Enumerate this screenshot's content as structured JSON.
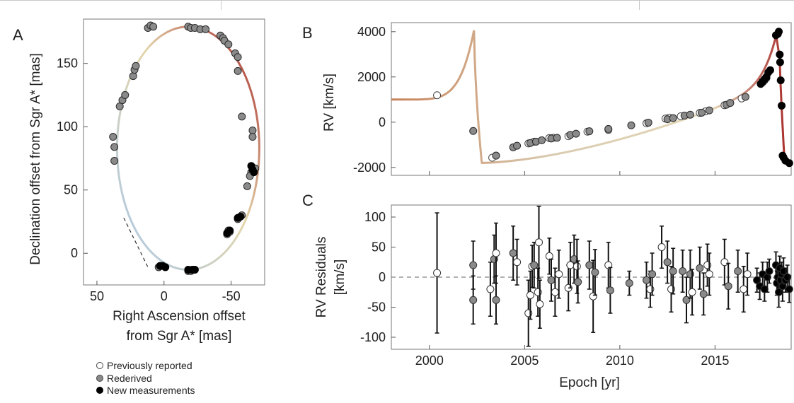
{
  "panels": {
    "a": {
      "label": "A"
    },
    "b": {
      "label": "B"
    },
    "c": {
      "label": "C"
    }
  },
  "legend": [
    {
      "label": "Previously reported",
      "color": "#ffffff"
    },
    {
      "label": "Rederived",
      "color": "#8a8a8a"
    },
    {
      "label": "New measurements",
      "color": "#000000"
    }
  ],
  "colors": {
    "orbit_start": "#a9c8ea",
    "orbit_mid": "#e3d6ac",
    "orbit_end": "#a52222",
    "point_edge": "#2b2b2b",
    "frame": "#777777"
  },
  "chart_data": [
    {
      "type": "scatter",
      "panel": "A",
      "xlabel_lines": [
        "Right Ascension offset",
        "from Sgr A* [mas]"
      ],
      "ylabel": "Declination offset from Sgr A* [mas]",
      "xlim": [
        60,
        -75
      ],
      "ylim": [
        -25,
        185
      ],
      "xticks": [
        50,
        0,
        -50
      ],
      "yticks": [
        0,
        50,
        100,
        150
      ],
      "orbit": {
        "center": [
          -18,
          83
        ],
        "semi_axes": [
          53,
          96
        ],
        "pericenter": [
          -18,
          -13
        ],
        "label": "orbit curve"
      },
      "pericenter_line": {
        "from": [
          30,
          28
        ],
        "to": [
          12,
          -11
        ]
      },
      "points": {
        "rederived": [
          [
            38,
            92
          ],
          [
            37,
            84
          ],
          [
            37,
            73
          ],
          [
            33,
            116
          ],
          [
            31,
            121
          ],
          [
            29,
            125
          ],
          [
            23,
            140
          ],
          [
            22,
            145
          ],
          [
            21,
            148
          ],
          [
            12,
            178
          ],
          [
            10,
            180
          ],
          [
            8,
            179
          ],
          [
            -18,
            179
          ],
          [
            -20,
            178
          ],
          [
            -23,
            178
          ],
          [
            -27,
            177
          ],
          [
            -31,
            177
          ],
          [
            -42,
            172
          ],
          [
            -44,
            170
          ],
          [
            -45,
            168
          ],
          [
            -48,
            165
          ],
          [
            -53,
            158
          ],
          [
            -55,
            155
          ],
          [
            -55,
            144
          ],
          [
            -58,
            108
          ],
          [
            -66,
            97
          ],
          [
            -66,
            92
          ],
          [
            -68,
            67
          ],
          [
            -65,
            64
          ],
          [
            -64,
            61
          ],
          [
            -62,
            53
          ],
          [
            -58,
            30
          ],
          [
            -55,
            27
          ],
          [
            -49,
            17
          ],
          [
            -47,
            15
          ],
          [
            -48,
            18
          ],
          [
            4,
            -11
          ],
          [
            2,
            -10
          ],
          [
            -18,
            -14
          ],
          [
            -20,
            -14
          ],
          [
            -22,
            -13
          ]
        ],
        "new": [
          [
            3,
            -10
          ],
          [
            1,
            -10
          ],
          [
            -1,
            -11
          ],
          [
            -18,
            -13
          ],
          [
            -21,
            -13
          ],
          [
            -23,
            -13
          ],
          [
            -49,
            18
          ],
          [
            -47,
            16
          ],
          [
            -57,
            29
          ],
          [
            -55,
            28
          ],
          [
            -65,
            69
          ],
          [
            -66,
            66
          ],
          [
            -67,
            64
          ]
        ]
      }
    },
    {
      "type": "line",
      "panel": "B",
      "ylabel": "RV [km/s]",
      "xlim": [
        1998,
        2019
      ],
      "ylim": [
        -2350,
        4400
      ],
      "yticks": [
        -2000,
        0,
        2000,
        4000
      ],
      "points": {
        "previous": [
          [
            2000.4,
            1190
          ],
          [
            2003.3,
            -1570
          ],
          [
            2003.5,
            -1480
          ],
          [
            2005.2,
            -940
          ],
          [
            2005.5,
            -860
          ],
          [
            2006.3,
            -700
          ],
          [
            2006.5,
            -690
          ],
          [
            2007.3,
            -620
          ],
          [
            2008.3,
            -420
          ],
          [
            2009.4,
            -340
          ],
          [
            2011.4,
            -50
          ],
          [
            2012.4,
            160
          ],
          [
            2012.6,
            200
          ],
          [
            2013.2,
            260
          ],
          [
            2014.2,
            410
          ],
          [
            2014.5,
            480
          ],
          [
            2015.5,
            750
          ],
          [
            2016.4,
            1050
          ]
        ],
        "rederived": [
          [
            2002.3,
            -390
          ],
          [
            2003.5,
            -1480
          ],
          [
            2004.4,
            -1110
          ],
          [
            2004.6,
            -1040
          ],
          [
            2005.3,
            -920
          ],
          [
            2005.6,
            -860
          ],
          [
            2005.9,
            -800
          ],
          [
            2006.4,
            -720
          ],
          [
            2006.7,
            -690
          ],
          [
            2007.4,
            -560
          ],
          [
            2007.7,
            -510
          ],
          [
            2008.4,
            -400
          ],
          [
            2009.4,
            -300
          ],
          [
            2010.6,
            -140
          ],
          [
            2011.5,
            -20
          ],
          [
            2012.5,
            130
          ],
          [
            2012.8,
            180
          ],
          [
            2013.4,
            290
          ],
          [
            2013.7,
            330
          ],
          [
            2014.3,
            420
          ],
          [
            2014.7,
            520
          ],
          [
            2015.6,
            770
          ],
          [
            2015.8,
            850
          ],
          [
            2016.6,
            1120
          ],
          [
            2017.5,
            1760
          ],
          [
            2017.6,
            1850
          ],
          [
            2017.7,
            1950
          ]
        ],
        "new": [
          [
            2017.4,
            1690
          ],
          [
            2017.5,
            1800
          ],
          [
            2017.6,
            1900
          ],
          [
            2017.7,
            2000
          ],
          [
            2017.8,
            2200
          ],
          [
            2017.9,
            2300
          ],
          [
            2018.2,
            3840
          ],
          [
            2018.3,
            3900
          ],
          [
            2018.35,
            4000
          ],
          [
            2018.4,
            2990
          ],
          [
            2018.42,
            2650
          ],
          [
            2018.45,
            1850
          ],
          [
            2018.5,
            730
          ],
          [
            2018.55,
            -1480
          ],
          [
            2018.6,
            -1560
          ],
          [
            2018.7,
            -1700
          ],
          [
            2018.9,
            -1810
          ]
        ]
      }
    },
    {
      "type": "scatter",
      "panel": "C",
      "xlabel": "Epoch [yr]",
      "ylabel_lines": [
        "RV Residuals",
        "[km/s]"
      ],
      "xlim": [
        1998,
        2019
      ],
      "ylim": [
        -120,
        120
      ],
      "xticks": [
        2000,
        2005,
        2010,
        2015
      ],
      "yticks": [
        -100,
        -50,
        0,
        50,
        100
      ],
      "zero_line": 0,
      "points": [
        [
          2000.4,
          7,
          100,
          "o"
        ],
        [
          2002.3,
          20,
          40,
          "r"
        ],
        [
          2002.3,
          -38,
          40,
          "r"
        ],
        [
          2003.2,
          -20,
          45,
          "o"
        ],
        [
          2003.4,
          30,
          40,
          "r"
        ],
        [
          2003.5,
          -38,
          40,
          "r"
        ],
        [
          2003.5,
          40,
          50,
          "o"
        ],
        [
          2004.4,
          40,
          45,
          "r"
        ],
        [
          2004.6,
          25,
          38,
          "o"
        ],
        [
          2005.2,
          -60,
          55,
          "o"
        ],
        [
          2005.3,
          -30,
          40,
          "o"
        ],
        [
          2005.4,
          18,
          35,
          "o"
        ],
        [
          2005.5,
          20,
          38,
          "r"
        ],
        [
          2005.7,
          -25,
          40,
          "o"
        ],
        [
          2005.75,
          58,
          60,
          "o"
        ],
        [
          2005.8,
          -45,
          40,
          "o"
        ],
        [
          2006.3,
          35,
          30,
          "o"
        ],
        [
          2006.4,
          -5,
          35,
          "r"
        ],
        [
          2006.6,
          -25,
          40,
          "o"
        ],
        [
          2006.8,
          5,
          40,
          "o"
        ],
        [
          2007.3,
          -18,
          38,
          "o"
        ],
        [
          2007.4,
          20,
          38,
          "o"
        ],
        [
          2007.6,
          30,
          40,
          "r"
        ],
        [
          2007.75,
          18,
          45,
          "o"
        ],
        [
          2007.8,
          -8,
          35,
          "r"
        ],
        [
          2008.4,
          20,
          40,
          "r"
        ],
        [
          2008.6,
          -32,
          60,
          "o"
        ],
        [
          2008.7,
          8,
          38,
          "r"
        ],
        [
          2009.4,
          20,
          38,
          "o"
        ],
        [
          2009.5,
          -22,
          38,
          "r"
        ],
        [
          2010.5,
          -10,
          20,
          "r"
        ],
        [
          2011.4,
          -5,
          30,
          "r"
        ],
        [
          2011.6,
          -20,
          30,
          "o"
        ],
        [
          2011.7,
          5,
          35,
          "r"
        ],
        [
          2012.2,
          50,
          35,
          "o"
        ],
        [
          2012.5,
          25,
          35,
          "r"
        ],
        [
          2012.7,
          -20,
          38,
          "o"
        ],
        [
          2012.8,
          10,
          38,
          "r"
        ],
        [
          2013.3,
          10,
          35,
          "r"
        ],
        [
          2013.5,
          -38,
          38,
          "r"
        ],
        [
          2013.7,
          5,
          40,
          "r"
        ],
        [
          2013.8,
          -25,
          38,
          "o"
        ],
        [
          2014.2,
          15,
          35,
          "r"
        ],
        [
          2014.4,
          -28,
          35,
          "r"
        ],
        [
          2014.6,
          20,
          35,
          "o"
        ],
        [
          2014.7,
          5,
          35,
          "o"
        ],
        [
          2015.5,
          25,
          38,
          "o"
        ],
        [
          2015.7,
          -15,
          38,
          "r"
        ],
        [
          2016.2,
          10,
          35,
          "r"
        ],
        [
          2016.5,
          -20,
          38,
          "o"
        ],
        [
          2016.7,
          5,
          35,
          "o"
        ],
        [
          2017.2,
          -5,
          20,
          "n"
        ],
        [
          2017.35,
          -15,
          22,
          "n"
        ],
        [
          2017.5,
          5,
          20,
          "n"
        ],
        [
          2017.6,
          -20,
          20,
          "n"
        ],
        [
          2017.75,
          0,
          25,
          "n"
        ],
        [
          2017.85,
          10,
          20,
          "n"
        ],
        [
          2018.2,
          20,
          22,
          "n"
        ],
        [
          2018.25,
          -10,
          20,
          "n"
        ],
        [
          2018.3,
          0,
          22,
          "n"
        ],
        [
          2018.35,
          -25,
          25,
          "n"
        ],
        [
          2018.4,
          15,
          20,
          "n"
        ],
        [
          2018.45,
          -5,
          22,
          "n"
        ],
        [
          2018.5,
          5,
          20,
          "n"
        ],
        [
          2018.55,
          -15,
          25,
          "n"
        ],
        [
          2018.6,
          10,
          22,
          "n"
        ],
        [
          2018.7,
          -5,
          20,
          "n"
        ],
        [
          2018.8,
          0,
          20,
          "n"
        ],
        [
          2018.9,
          -20,
          22,
          "n"
        ]
      ]
    }
  ]
}
